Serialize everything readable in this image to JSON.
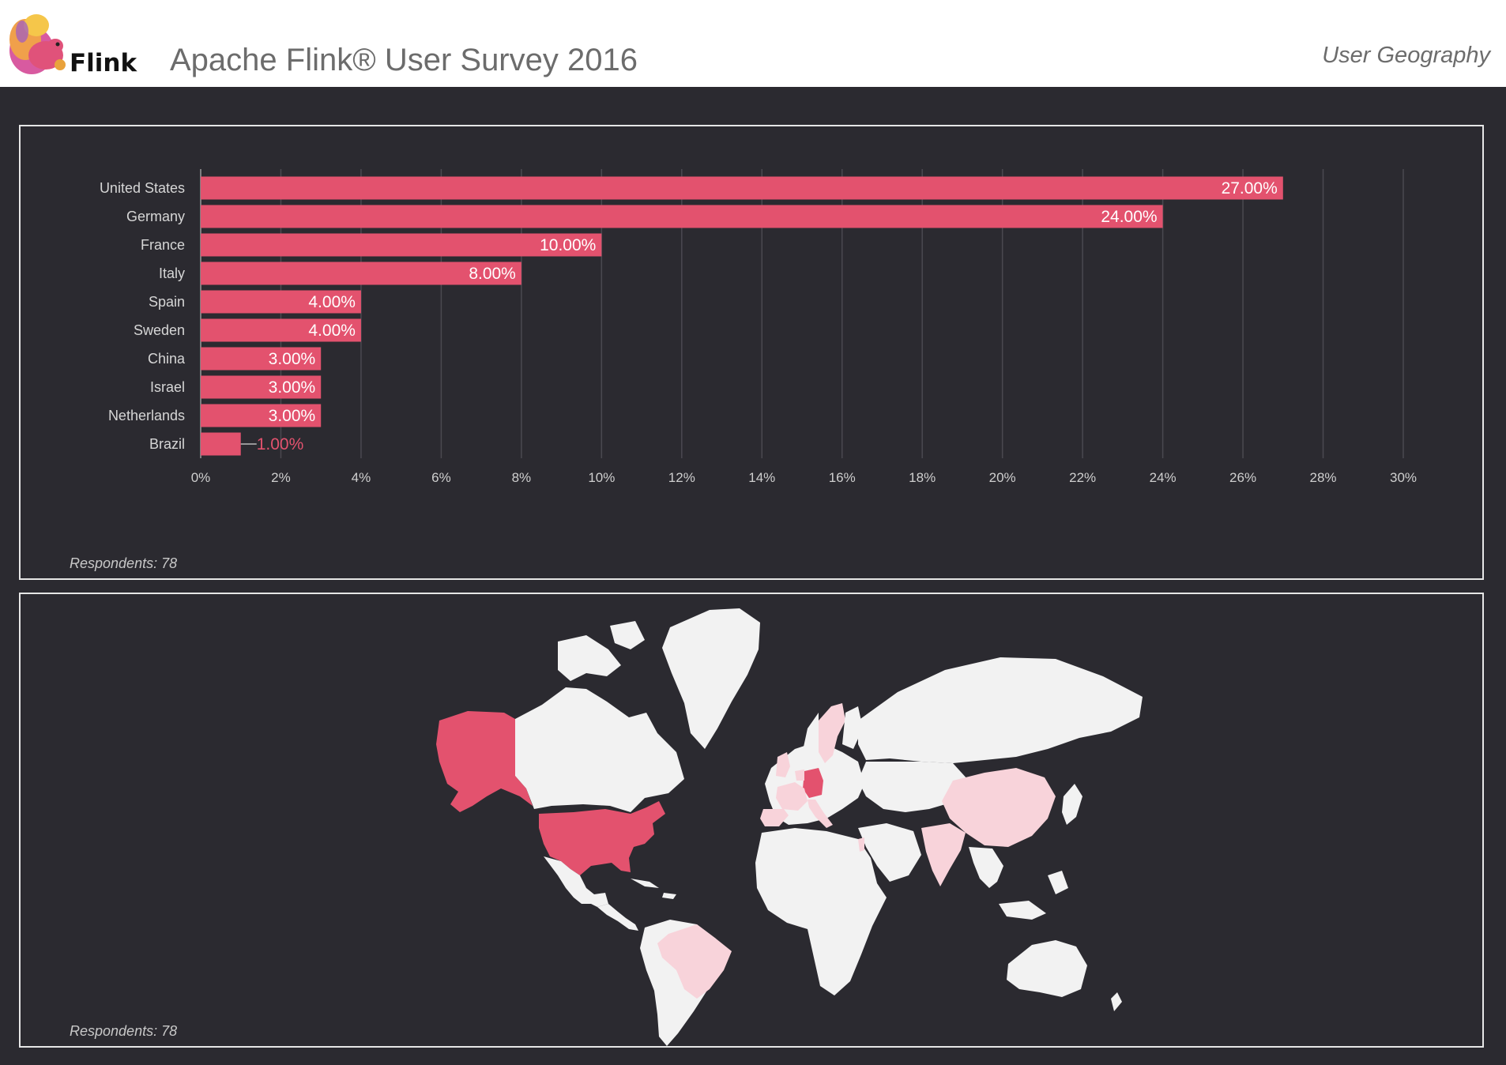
{
  "header": {
    "logo_text": "Flink",
    "title": "Apache Flink® User Survey 2016",
    "section": "User Geography"
  },
  "colors": {
    "bar": "#e3526e",
    "background": "#2b2a30",
    "land": "#f2f2f2",
    "highlight_strong": "#e3526e",
    "highlight_light": "#f8d3da"
  },
  "chart_data": [
    {
      "type": "bar",
      "orientation": "horizontal",
      "categories": [
        "United States",
        "Germany",
        "France",
        "Italy",
        "Spain",
        "Sweden",
        "China",
        "Israel",
        "Netherlands",
        "Brazil"
      ],
      "values": [
        27,
        24,
        10,
        8,
        4,
        4,
        3,
        3,
        3,
        1
      ],
      "value_labels": [
        "27.00%",
        "24.00%",
        "10.00%",
        "8.00%",
        "4.00%",
        "4.00%",
        "3.00%",
        "3.00%",
        "3.00%",
        "1.00%"
      ],
      "xlim": [
        0,
        30
      ],
      "xticks": [
        "0%",
        "2%",
        "4%",
        "6%",
        "8%",
        "10%",
        "12%",
        "14%",
        "16%",
        "18%",
        "20%",
        "22%",
        "24%",
        "26%",
        "28%",
        "30%"
      ],
      "grid": true,
      "footnote": "Respondents: 78"
    },
    {
      "type": "map",
      "highlighted_countries": [
        "United States",
        "Germany",
        "France",
        "Italy",
        "Spain",
        "Sweden",
        "China",
        "Israel",
        "Netherlands",
        "Brazil"
      ],
      "footnote": "Respondents: 78"
    }
  ]
}
